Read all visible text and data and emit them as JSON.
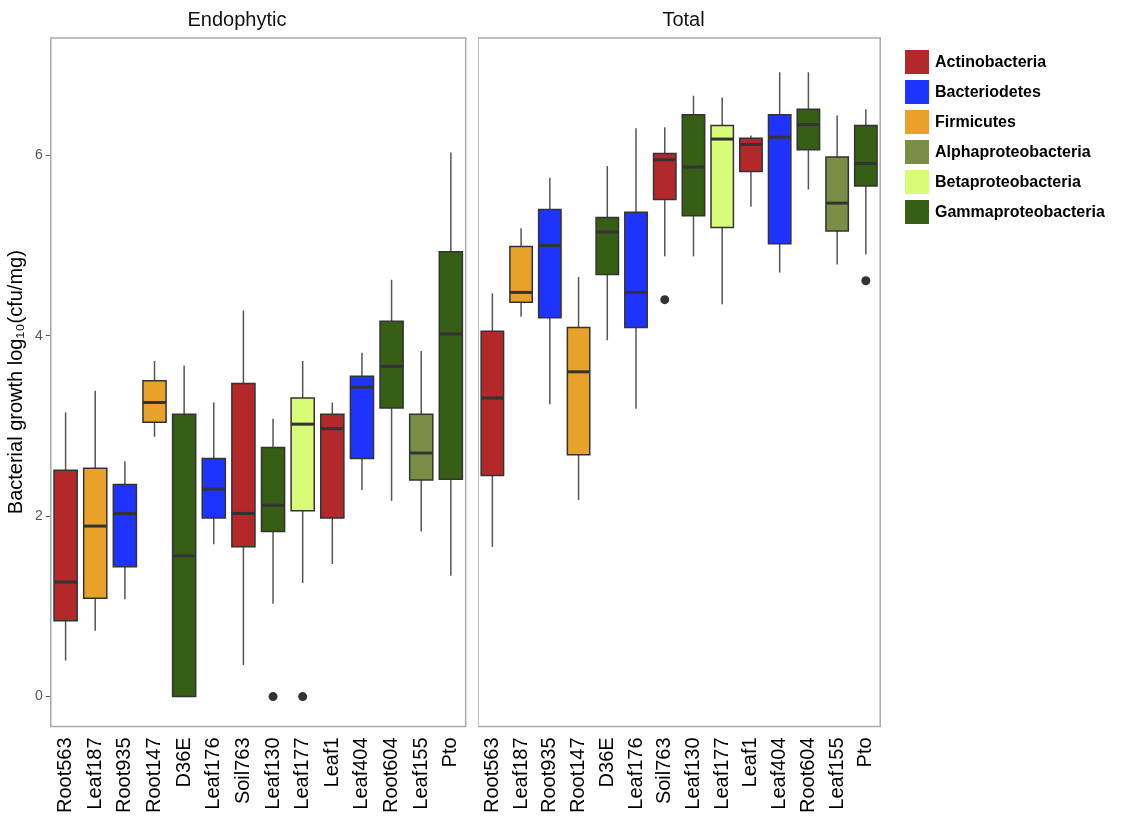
{
  "chart_data": [
    {
      "type": "box",
      "title": "Endophytic",
      "ylabel": "Bacterial growth log₁₀(cfu/mg)",
      "categories": [
        "Root563",
        "Leaf187",
        "Root935",
        "Root147",
        "D36E",
        "Leaf176",
        "Soil763",
        "Leaf130",
        "Leaf177",
        "Leaf1",
        "Leaf404",
        "Root604",
        "Leaf155",
        "Pto"
      ],
      "ylim": [
        -0.33,
        7.3
      ],
      "yticks": [
        0,
        2,
        4,
        6
      ],
      "grid": false,
      "legend": false,
      "series": [
        {
          "color": "#b2282b",
          "boxes": [
            {
              "low": 0.4,
              "q1": 0.84,
              "median": 1.27,
              "q3": 2.51,
              "high": 3.15
            },
            null,
            null,
            null,
            null,
            null,
            {
              "low": 0.35,
              "q1": 1.66,
              "median": 2.03,
              "q3": 3.47,
              "high": 4.28
            },
            null,
            null,
            {
              "low": 1.47,
              "q1": 1.98,
              "median": 2.97,
              "q3": 3.13,
              "high": 3.26
            },
            null,
            null,
            null,
            null
          ]
        },
        {
          "color": "#1f33ff",
          "boxes": [
            null,
            null,
            {
              "low": 1.08,
              "q1": 1.44,
              "median": 2.03,
              "q3": 2.35,
              "high": 2.61
            },
            null,
            null,
            {
              "low": 1.69,
              "q1": 1.98,
              "median": 2.3,
              "q3": 2.64,
              "high": 3.26
            },
            null,
            null,
            null,
            null,
            {
              "low": 2.29,
              "q1": 2.64,
              "median": 3.43,
              "q3": 3.55,
              "high": 3.81
            },
            null,
            null,
            null
          ]
        },
        {
          "color": "#e8a22a",
          "boxes": [
            null,
            {
              "low": 0.73,
              "q1": 1.09,
              "median": 1.89,
              "q3": 2.53,
              "high": 3.39
            },
            null,
            {
              "low": 2.88,
              "q1": 3.04,
              "median": 3.26,
              "q3": 3.5,
              "high": 3.72
            },
            null,
            null,
            null,
            null,
            null,
            null,
            null,
            null,
            null,
            null
          ]
        },
        {
          "color": "#7a8f45",
          "boxes": [
            null,
            null,
            null,
            null,
            null,
            null,
            null,
            null,
            null,
            null,
            null,
            null,
            {
              "low": 1.83,
              "q1": 2.4,
              "median": 2.7,
              "q3": 3.13,
              "high": 3.83
            },
            null
          ]
        },
        {
          "color": "#d8fb78",
          "boxes": [
            null,
            null,
            null,
            null,
            null,
            null,
            null,
            null,
            {
              "low": 1.26,
              "q1": 2.06,
              "median": 3.02,
              "q3": 3.31,
              "high": 3.72,
              "outliers": [
                0
              ]
            },
            null,
            null,
            null,
            null,
            null
          ]
        },
        {
          "color": "#365e14",
          "boxes": [
            null,
            null,
            null,
            null,
            {
              "low": 0,
              "q1": 0,
              "median": 1.56,
              "q3": 3.13,
              "high": 3.67
            },
            null,
            null,
            {
              "low": 1.03,
              "q1": 1.83,
              "median": 2.12,
              "q3": 2.76,
              "high": 3.08,
              "outliers": [
                0
              ]
            },
            null,
            null,
            null,
            {
              "low": 2.17,
              "q1": 3.2,
              "median": 3.66,
              "q3": 4.16,
              "high": 4.62
            },
            null,
            {
              "low": 1.34,
              "q1": 2.41,
              "median": 4.02,
              "q3": 4.93,
              "high": 6.03
            }
          ]
        }
      ]
    },
    {
      "type": "box",
      "title": "Total",
      "categories": [
        "Root563",
        "Leaf187",
        "Root935",
        "Root147",
        "D36E",
        "Leaf176",
        "Soil763",
        "Leaf130",
        "Leaf177",
        "Leaf1",
        "Leaf404",
        "Root604",
        "Leaf155",
        "Pto"
      ],
      "ylim": [
        -0.33,
        7.3
      ],
      "yticks": [
        0,
        2,
        4,
        6
      ],
      "tick_labels": "x",
      "grid": false,
      "legend": "right",
      "series": [
        {
          "name": "Actinobacteria",
          "color": "#b2282b",
          "boxes": [
            {
              "low": 1.66,
              "q1": 2.45,
              "median": 3.31,
              "q3": 4.05,
              "high": 4.47
            },
            null,
            null,
            null,
            null,
            null,
            {
              "low": 4.88,
              "q1": 5.51,
              "median": 5.95,
              "q3": 6.02,
              "high": 6.31,
              "outliers": [
                4.4
              ]
            },
            null,
            null,
            {
              "low": 5.43,
              "q1": 5.82,
              "median": 6.12,
              "q3": 6.19,
              "high": 6.22
            },
            null,
            null,
            null,
            null
          ]
        },
        {
          "name": "Bacteriodetes",
          "color": "#1f33ff",
          "boxes": [
            null,
            null,
            {
              "low": 3.24,
              "q1": 4.2,
              "median": 5.0,
              "q3": 5.4,
              "high": 5.75
            },
            null,
            null,
            {
              "low": 3.19,
              "q1": 4.09,
              "median": 4.48,
              "q3": 5.37,
              "high": 6.3
            },
            null,
            null,
            null,
            null,
            {
              "low": 4.7,
              "q1": 5.02,
              "median": 6.2,
              "q3": 6.45,
              "high": 6.92
            },
            null,
            null,
            null
          ]
        },
        {
          "name": "Firmicutes",
          "color": "#e8a22a",
          "boxes": [
            null,
            {
              "low": 4.21,
              "q1": 4.37,
              "median": 4.48,
              "q3": 4.99,
              "high": 5.19
            },
            null,
            {
              "low": 2.18,
              "q1": 2.68,
              "median": 3.6,
              "q3": 4.09,
              "high": 4.65
            },
            null,
            null,
            null,
            null,
            null,
            null,
            null,
            null,
            null,
            null
          ]
        },
        {
          "name": "Alphaproteobacteria",
          "color": "#7a8f45",
          "boxes": [
            null,
            null,
            null,
            null,
            null,
            null,
            null,
            null,
            null,
            null,
            null,
            null,
            {
              "low": 4.79,
              "q1": 5.16,
              "median": 5.47,
              "q3": 5.98,
              "high": 6.44
            },
            null
          ]
        },
        {
          "name": "Betaproteobacteria",
          "color": "#d8fb78",
          "boxes": [
            null,
            null,
            null,
            null,
            null,
            null,
            null,
            null,
            {
              "low": 4.35,
              "q1": 5.2,
              "median": 6.18,
              "q3": 6.33,
              "high": 6.64
            },
            null,
            null,
            null,
            null,
            null
          ]
        },
        {
          "name": "Gammaproteobacteria",
          "color": "#365e14",
          "boxes": [
            null,
            null,
            null,
            null,
            {
              "low": 3.95,
              "q1": 4.68,
              "median": 5.15,
              "q3": 5.31,
              "high": 5.88
            },
            null,
            null,
            {
              "low": 4.88,
              "q1": 5.33,
              "median": 5.87,
              "q3": 6.45,
              "high": 6.66
            },
            null,
            null,
            null,
            {
              "low": 5.62,
              "q1": 6.06,
              "median": 6.34,
              "q3": 6.51,
              "high": 6.92
            },
            null,
            {
              "low": 4.9,
              "q1": 5.66,
              "median": 5.91,
              "q3": 6.33,
              "high": 6.51,
              "outliers": [
                4.61
              ]
            }
          ]
        }
      ]
    }
  ]
}
